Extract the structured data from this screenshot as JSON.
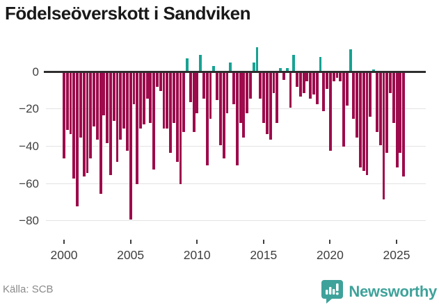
{
  "title": "Födelseöverskott i Sandviken",
  "footer": {
    "source": "Källa: SCB",
    "brand": "Newsworthy"
  },
  "icons": {
    "brand_badge": "newsworthy-bar-chart-badge-icon"
  },
  "colors": {
    "negative_bar": "#9d0b4c",
    "positive_bar": "#17a292",
    "zero_line": "#2e2e2e",
    "gridline": "#e3e3e3",
    "brand_teal": "#3ea29a",
    "axis_text": "#3f3f3f"
  },
  "chart_data": {
    "type": "bar",
    "title": "Födelseöverskott i Sandviken",
    "frequency": "quarterly",
    "start_year": 2000,
    "start_quarter": 1,
    "x_ticks": [
      2000,
      2005,
      2010,
      2015,
      2020,
      2025
    ],
    "y_ticks": [
      0,
      -20,
      -40,
      -60,
      -80
    ],
    "y_tick_labels": [
      "0",
      "−20",
      "−40",
      "−60",
      "−80"
    ],
    "ylim": [
      -85,
      15
    ],
    "grid": true,
    "legend": false,
    "values": [
      -46,
      -31,
      -33,
      -57,
      -72,
      -35,
      -56,
      -54,
      -46,
      -29,
      -36,
      -65,
      -23,
      -38,
      -55,
      -26,
      -48,
      -36,
      -30,
      -42,
      -79,
      -17,
      -60,
      -30,
      -28,
      -14,
      -27,
      -52,
      -8,
      -10,
      -30,
      -30,
      -43,
      -27,
      -48,
      -60,
      -32,
      7,
      -16,
      -32,
      -22,
      9,
      -14,
      -50,
      -25,
      3,
      -15,
      -39,
      -46,
      -22,
      5,
      -17,
      -50,
      -27,
      -35,
      -22,
      -14,
      5,
      13,
      -14,
      -27,
      -33,
      -36,
      -11,
      -27,
      2,
      -4,
      2,
      -19,
      9,
      -8,
      -13,
      -11,
      -5,
      -14,
      -12,
      -17,
      8,
      -21,
      -9,
      -42,
      -5,
      -3,
      -5,
      -40,
      -18,
      12,
      -25,
      -35,
      -51,
      -53,
      -55,
      -24,
      1,
      -32,
      -39,
      -68,
      -43,
      -11,
      -27,
      -51,
      -43,
      -56
    ]
  }
}
